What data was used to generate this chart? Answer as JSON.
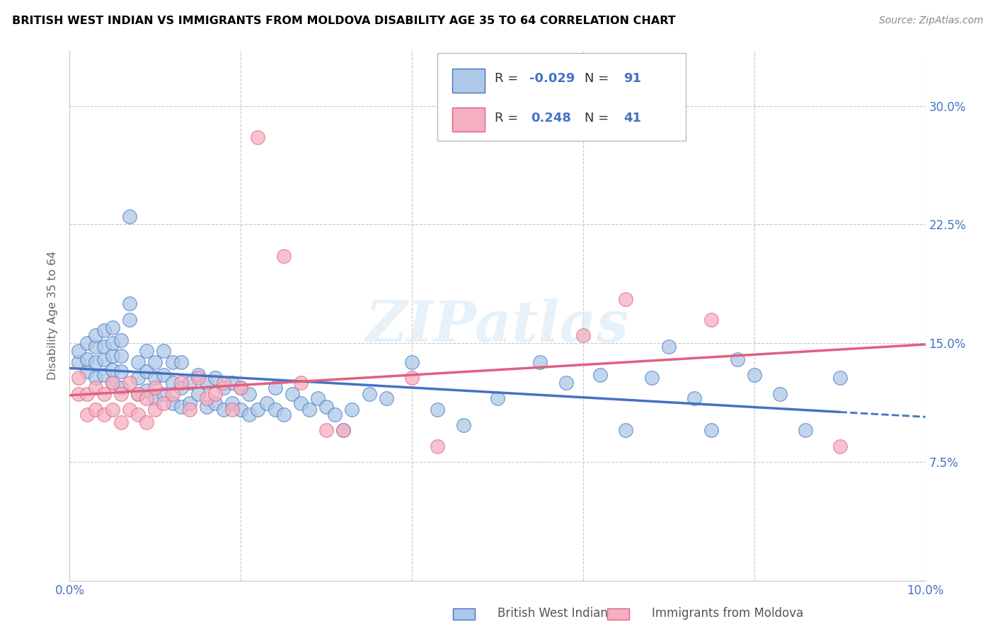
{
  "title": "BRITISH WEST INDIAN VS IMMIGRANTS FROM MOLDOVA DISABILITY AGE 35 TO 64 CORRELATION CHART",
  "source": "Source: ZipAtlas.com",
  "ylabel": "Disability Age 35 to 64",
  "xlim": [
    0.0,
    0.1
  ],
  "ylim": [
    0.0,
    0.335
  ],
  "yticks": [
    0.075,
    0.15,
    0.225,
    0.3
  ],
  "ytick_labels": [
    "7.5%",
    "15.0%",
    "22.5%",
    "30.0%"
  ],
  "r_bwi": -0.029,
  "n_bwi": 91,
  "r_mol": 0.248,
  "n_mol": 41,
  "color_bwi": "#adc8e8",
  "color_mol": "#f4afc0",
  "color_bwi_line": "#4472c4",
  "color_mol_line": "#e06080",
  "color_tick": "#4472c4",
  "watermark": "ZIPatlas",
  "bwi_x": [
    0.001,
    0.001,
    0.002,
    0.002,
    0.002,
    0.003,
    0.003,
    0.003,
    0.003,
    0.004,
    0.004,
    0.004,
    0.004,
    0.005,
    0.005,
    0.005,
    0.005,
    0.005,
    0.006,
    0.006,
    0.006,
    0.006,
    0.007,
    0.007,
    0.007,
    0.008,
    0.008,
    0.008,
    0.009,
    0.009,
    0.009,
    0.01,
    0.01,
    0.01,
    0.011,
    0.011,
    0.011,
    0.012,
    0.012,
    0.012,
    0.013,
    0.013,
    0.013,
    0.014,
    0.014,
    0.015,
    0.015,
    0.016,
    0.016,
    0.017,
    0.017,
    0.018,
    0.018,
    0.019,
    0.019,
    0.02,
    0.02,
    0.021,
    0.021,
    0.022,
    0.023,
    0.024,
    0.024,
    0.025,
    0.026,
    0.027,
    0.028,
    0.029,
    0.03,
    0.031,
    0.032,
    0.033,
    0.035,
    0.037,
    0.04,
    0.043,
    0.046,
    0.05,
    0.055,
    0.058,
    0.062,
    0.065,
    0.068,
    0.07,
    0.073,
    0.075,
    0.078,
    0.08,
    0.083,
    0.086,
    0.09
  ],
  "bwi_y": [
    0.138,
    0.145,
    0.132,
    0.14,
    0.15,
    0.128,
    0.138,
    0.148,
    0.155,
    0.13,
    0.14,
    0.148,
    0.158,
    0.125,
    0.133,
    0.142,
    0.15,
    0.16,
    0.122,
    0.132,
    0.142,
    0.152,
    0.165,
    0.175,
    0.23,
    0.118,
    0.128,
    0.138,
    0.12,
    0.132,
    0.145,
    0.115,
    0.128,
    0.138,
    0.118,
    0.13,
    0.145,
    0.112,
    0.125,
    0.138,
    0.11,
    0.122,
    0.138,
    0.112,
    0.125,
    0.118,
    0.13,
    0.11,
    0.125,
    0.112,
    0.128,
    0.108,
    0.122,
    0.112,
    0.125,
    0.108,
    0.122,
    0.105,
    0.118,
    0.108,
    0.112,
    0.108,
    0.122,
    0.105,
    0.118,
    0.112,
    0.108,
    0.115,
    0.11,
    0.105,
    0.095,
    0.108,
    0.118,
    0.115,
    0.138,
    0.108,
    0.098,
    0.115,
    0.138,
    0.125,
    0.13,
    0.095,
    0.128,
    0.148,
    0.115,
    0.095,
    0.14,
    0.13,
    0.118,
    0.095,
    0.128
  ],
  "mol_x": [
    0.001,
    0.001,
    0.002,
    0.002,
    0.003,
    0.003,
    0.004,
    0.004,
    0.005,
    0.005,
    0.006,
    0.006,
    0.007,
    0.007,
    0.008,
    0.008,
    0.009,
    0.009,
    0.01,
    0.01,
    0.011,
    0.012,
    0.013,
    0.014,
    0.015,
    0.016,
    0.017,
    0.018,
    0.019,
    0.02,
    0.022,
    0.025,
    0.027,
    0.03,
    0.032,
    0.04,
    0.043,
    0.06,
    0.065,
    0.075,
    0.09
  ],
  "mol_y": [
    0.118,
    0.128,
    0.105,
    0.118,
    0.108,
    0.122,
    0.105,
    0.118,
    0.108,
    0.125,
    0.1,
    0.118,
    0.108,
    0.125,
    0.105,
    0.118,
    0.1,
    0.115,
    0.108,
    0.122,
    0.112,
    0.118,
    0.125,
    0.108,
    0.128,
    0.115,
    0.118,
    0.125,
    0.108,
    0.122,
    0.28,
    0.205,
    0.125,
    0.095,
    0.095,
    0.128,
    0.085,
    0.155,
    0.178,
    0.165,
    0.085
  ]
}
